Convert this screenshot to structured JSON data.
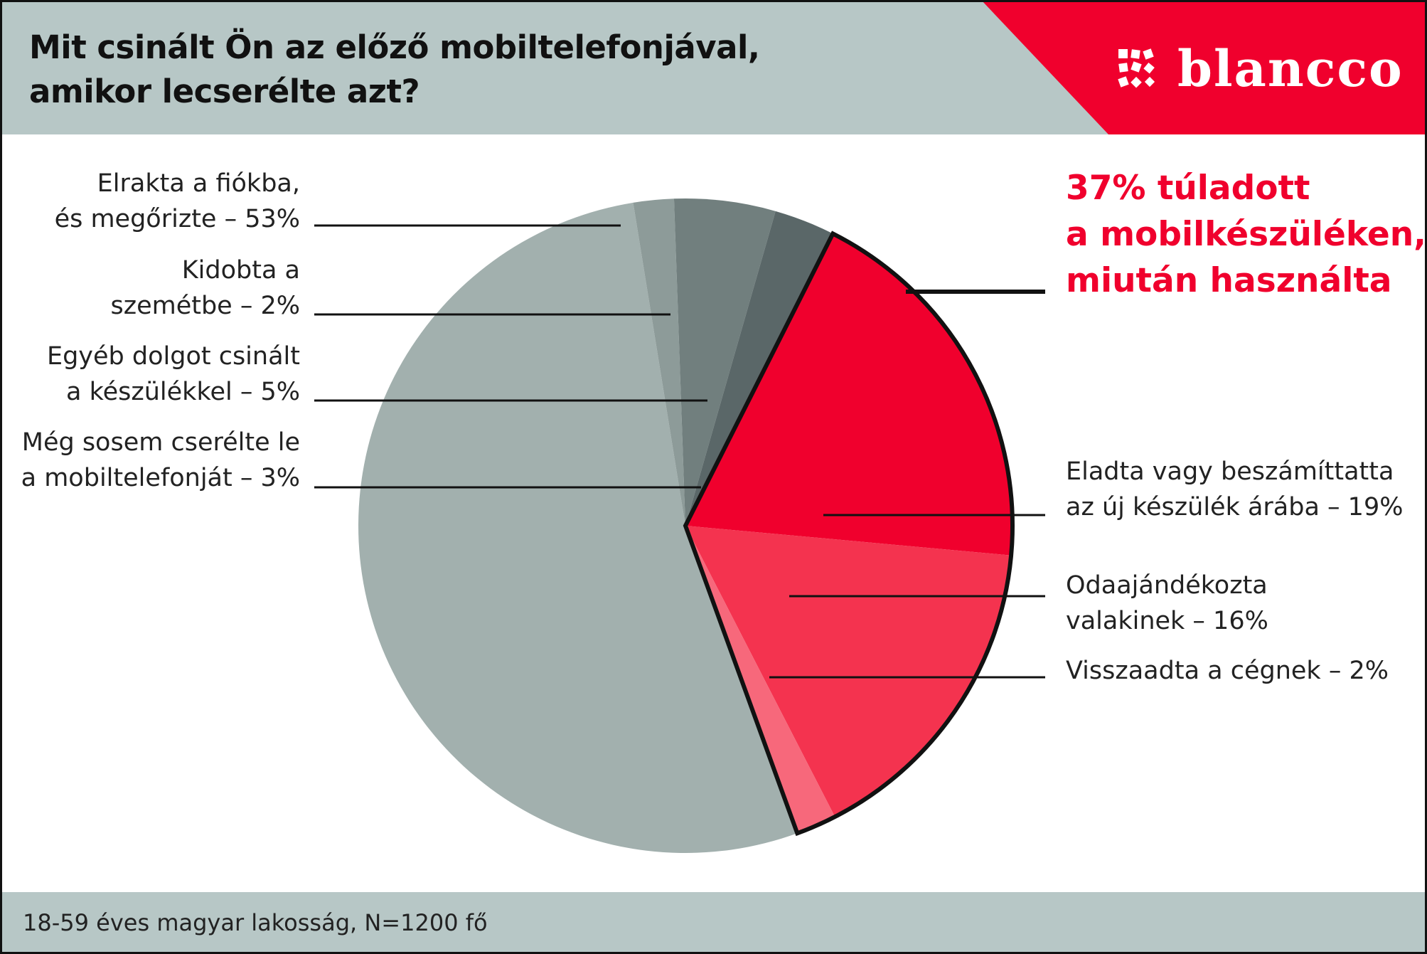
{
  "header": {
    "title_lines": [
      "Mit csinált Ön az előző mobiltelefonjával,",
      "amikor lecserélte azt?"
    ],
    "logo_text": "blancco",
    "accent_color": "#f0002d",
    "band_color": "#b7c7c6"
  },
  "headline": {
    "lines": [
      "37% túladott",
      "a mobilkészüléken,",
      "miután használta"
    ]
  },
  "footer": {
    "text": "18-59 éves magyar lakosság, N=1200 fő"
  },
  "chart_data": {
    "type": "pie",
    "title": "Mit csinált Ön az előző mobiltelefonjával, amikor lecserélte azt?",
    "slices": [
      {
        "label_lines": [
          "Elrakta a fiókba,",
          "és megőrizte – 53%"
        ],
        "category": "Elrakta a fiókba, és megőrizte",
        "value": 53,
        "color": "#a2b0ae",
        "group": "kept"
      },
      {
        "label_lines": [
          "Kidobta a",
          "szemétbe – 2%"
        ],
        "category": "Kidobta a szemétbe",
        "value": 2,
        "color": "#8d9b99",
        "group": "kept"
      },
      {
        "label_lines": [
          "Egyéb dolgot csinált",
          "a készülékkel – 5%"
        ],
        "category": "Egyéb dolgot csinált a készülékkel",
        "value": 5,
        "color": "#717f7e",
        "group": "kept"
      },
      {
        "label_lines": [
          "Még sosem cserélte le",
          "a mobiltelefonját – 3%"
        ],
        "category": "Még sosem cserélte le a mobiltelefonját",
        "value": 3,
        "color": "#5a6768",
        "group": "kept"
      },
      {
        "label_lines": [
          "Eladta  vagy beszámíttatta",
          "az új készülék árába – 19%"
        ],
        "category": "Eladta vagy beszámíttatta az új készülék árába",
        "value": 19,
        "color": "#f0002d",
        "group": "passed_on"
      },
      {
        "label_lines": [
          "Odaajándékozta",
          "valakinek – 16%"
        ],
        "category": "Odaajándékozta valakinek",
        "value": 16,
        "color": "#f4334f",
        "group": "passed_on"
      },
      {
        "label_lines": [
          "Visszaadta a cégnek – 2%"
        ],
        "category": "Visszaadta a cégnek",
        "value": 2,
        "color": "#f7687b",
        "group": "passed_on"
      }
    ],
    "highlight_total": 37,
    "legend": "none"
  }
}
